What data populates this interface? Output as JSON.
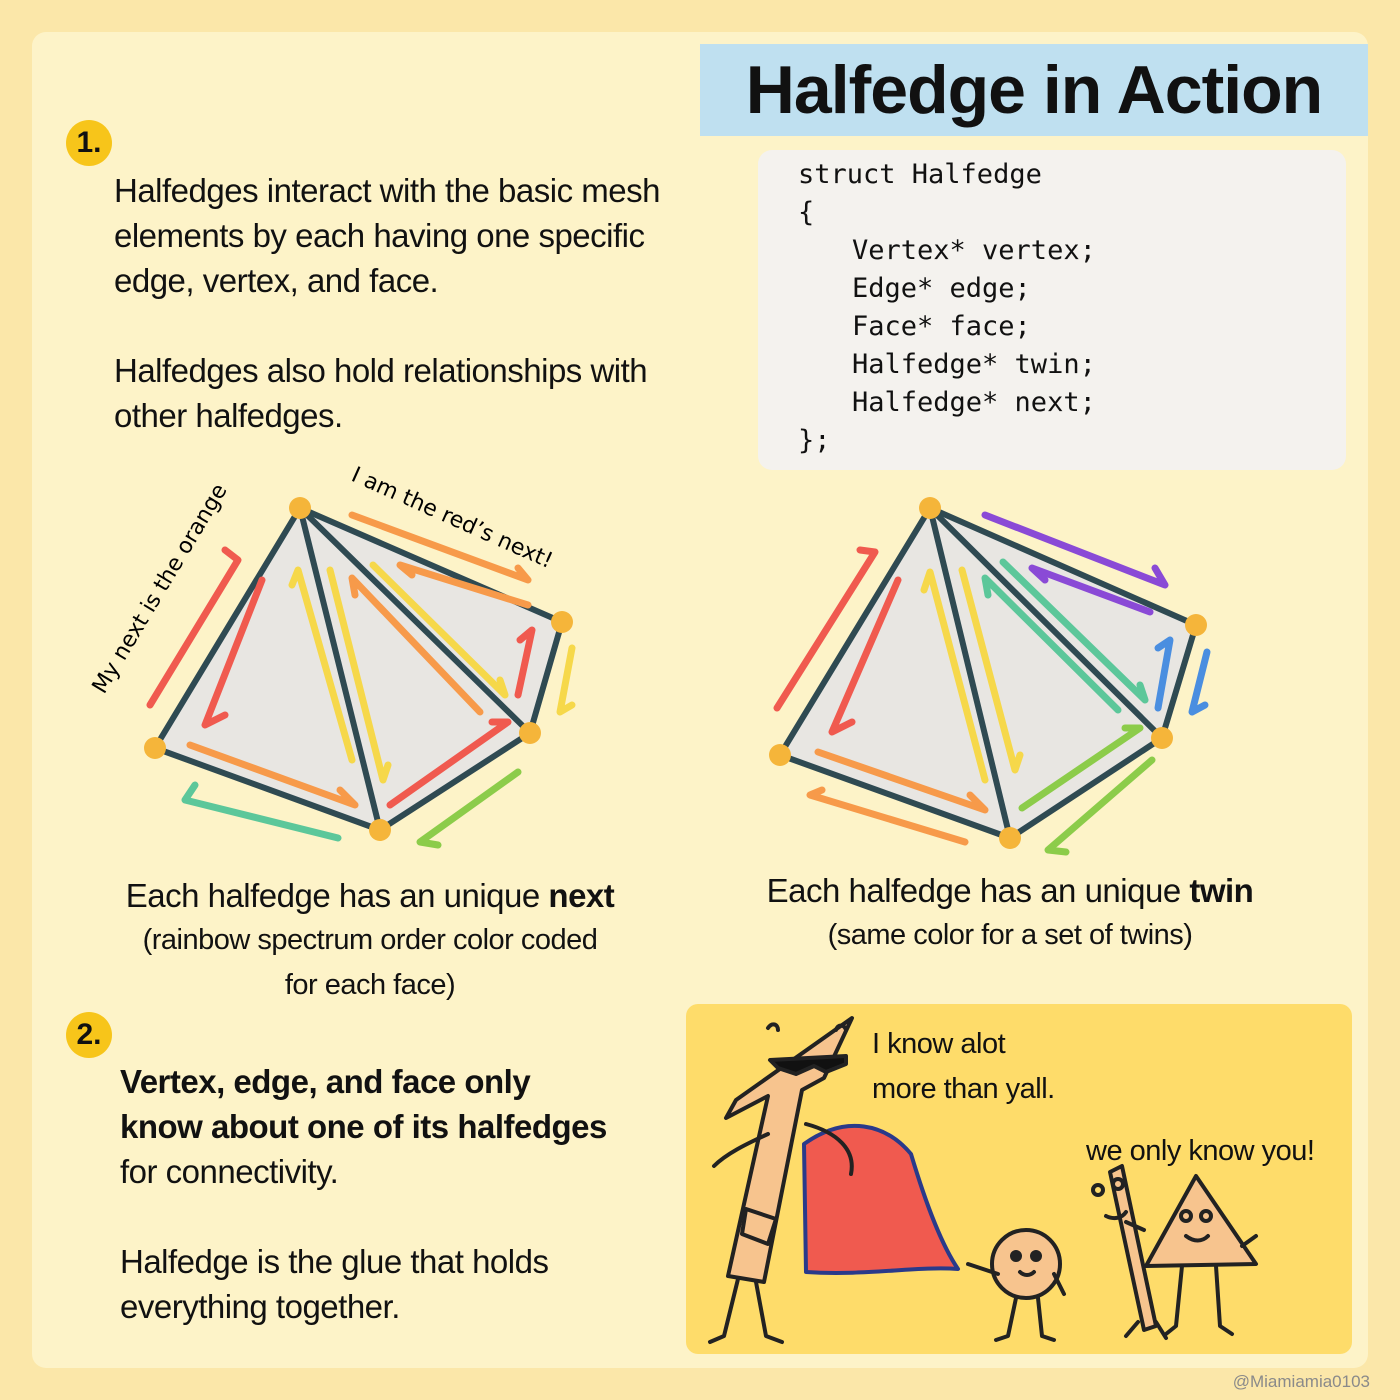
{
  "title": "Halfedge in Action",
  "section1": {
    "badge": "1.",
    "para1": "Halfedges interact with the basic mesh elements by each having one specific edge, vertex, and face.",
    "para2": "Halfedges also hold relationships with other halfedges."
  },
  "code": {
    "lines": [
      "struct Halfedge",
      "{",
      "Vertex* vertex;",
      "Edge* edge;",
      "Face* face;",
      "Halfedge* twin;",
      "Halfedge* next;",
      "};"
    ]
  },
  "diagram_left": {
    "label_orange": "My next is the orange",
    "label_red": "I am the red’s next!",
    "caption_prefix": "Each halfedge has an unique ",
    "caption_bold": "next",
    "caption_sub1": "(rainbow spectrum order color coded",
    "caption_sub2": "for each face)"
  },
  "diagram_right": {
    "caption_prefix": "Each halfedge has an unique ",
    "caption_bold": "twin",
    "caption_sub": "(same color for a set of twins)"
  },
  "section2": {
    "badge": "2.",
    "bold_line1": "Vertex, edge, and face only",
    "bold_line2": "know about one of its halfedges",
    "line3": "for connectivity.",
    "para2": "Halfedge is the glue that holds everything together."
  },
  "comic": {
    "speech1_line1": "I know alot",
    "speech1_line2": "more than yall.",
    "speech2": "we only know you!"
  },
  "credit": "@Miamiamia0103",
  "colors": {
    "background": "#fbe7a9",
    "card": "#fdf3c8",
    "title_bg": "#bfe0f0",
    "badge": "#f7c51a",
    "edge": "#2f4a52",
    "vertex": "#f5b53a",
    "face": "#e8e6e2",
    "red": "#f05a4f",
    "orange": "#f79a4a",
    "yellow": "#f6d84a",
    "green": "#8ccc4a",
    "teal": "#5cc79a",
    "blue": "#4a8ee0",
    "purple": "#8a4ad6"
  }
}
